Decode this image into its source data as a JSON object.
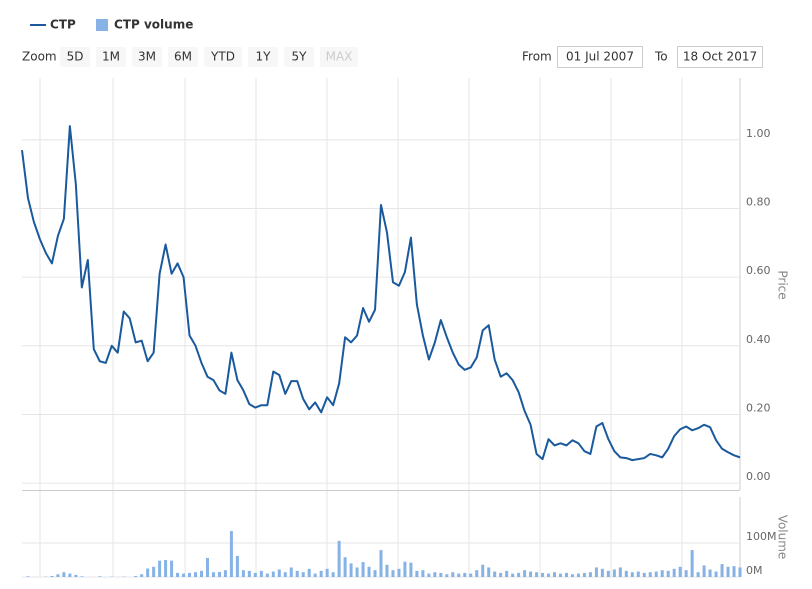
{
  "chart_data": [
    {
      "type": "line",
      "series": [
        {
          "name": "CTP",
          "color": "#1a5a9c",
          "values": [
            0.97,
            0.83,
            0.76,
            0.71,
            0.67,
            0.64,
            0.72,
            0.77,
            1.04,
            0.87,
            0.57,
            0.65,
            0.39,
            0.355,
            0.35,
            0.4,
            0.38,
            0.5,
            0.48,
            0.41,
            0.415,
            0.355,
            0.38,
            0.61,
            0.695,
            0.61,
            0.64,
            0.6,
            0.43,
            0.4,
            0.35,
            0.31,
            0.3,
            0.27,
            0.26,
            0.38,
            0.3,
            0.27,
            0.23,
            0.22,
            0.227,
            0.227,
            0.325,
            0.315,
            0.26,
            0.297,
            0.297,
            0.245,
            0.215,
            0.235,
            0.206,
            0.25,
            0.227,
            0.29,
            0.425,
            0.41,
            0.43,
            0.51,
            0.47,
            0.505,
            0.81,
            0.73,
            0.585,
            0.575,
            0.615,
            0.715,
            0.52,
            0.43,
            0.36,
            0.41,
            0.475,
            0.425,
            0.38,
            0.345,
            0.33,
            0.337,
            0.366,
            0.445,
            0.46,
            0.36,
            0.31,
            0.32,
            0.3,
            0.265,
            0.21,
            0.17,
            0.085,
            0.07,
            0.128,
            0.11,
            0.116,
            0.11,
            0.125,
            0.116,
            0.093,
            0.085,
            0.165,
            0.175,
            0.128,
            0.093,
            0.075,
            0.073,
            0.067,
            0.07,
            0.073,
            0.085,
            0.081,
            0.075,
            0.1,
            0.137,
            0.157,
            0.165,
            0.154,
            0.16,
            0.17,
            0.163,
            0.125,
            0.1,
            0.09,
            0.081,
            0.075
          ]
        }
      ],
      "ylabel": "Price",
      "ylim": [
        -0.02,
        1.18
      ],
      "yticks": [
        {
          "value": 0,
          "label": "0.00"
        },
        {
          "value": 0.2,
          "label": "0.20"
        },
        {
          "value": 0.4,
          "label": "0.40"
        },
        {
          "value": 0.6,
          "label": "0.60"
        },
        {
          "value": 0.8,
          "label": "0.80"
        },
        {
          "value": 1.0,
          "label": "1.00"
        }
      ],
      "grid": true
    },
    {
      "type": "bar",
      "series": [
        {
          "name": "CTP volume",
          "color": "#86b2e6",
          "values": [
            0,
            2,
            0,
            0,
            1,
            3,
            8,
            14,
            10,
            6,
            2,
            0,
            0,
            2,
            0,
            1,
            0,
            1,
            0,
            3,
            8,
            25,
            30,
            48,
            50,
            48,
            12,
            10,
            12,
            14,
            18,
            56,
            14,
            15,
            20,
            135,
            62,
            20,
            18,
            12,
            18,
            10,
            16,
            22,
            14,
            28,
            18,
            14,
            24,
            10,
            18,
            24,
            14,
            106,
            58,
            40,
            28,
            44,
            30,
            20,
            79,
            36,
            20,
            24,
            45,
            42,
            18,
            20,
            10,
            14,
            12,
            8,
            14,
            10,
            12,
            10,
            20,
            36,
            28,
            16,
            12,
            18,
            10,
            12,
            20,
            16,
            14,
            12,
            10,
            14,
            10,
            12,
            8,
            10,
            12,
            14,
            28,
            24,
            18,
            22,
            28,
            18,
            14,
            16,
            12,
            14,
            16,
            20,
            18,
            24,
            30,
            20,
            79,
            14,
            34,
            22,
            16,
            38,
            30,
            32,
            28
          ]
        }
      ],
      "ylabel": "Volume",
      "ylim": [
        0,
        235
      ],
      "yticks": [
        {
          "value": 0,
          "label": "0M"
        },
        {
          "value": 100,
          "label": "100M"
        }
      ],
      "grid": true
    }
  ],
  "range_selector": {
    "label": "Zoom",
    "buttons": [
      "5D",
      "1M",
      "3M",
      "6M",
      "YTD",
      "1Y",
      "5Y",
      "MAX"
    ],
    "from_label": "From",
    "from": "01 Jul 2007",
    "to_label": "To",
    "to": "18 Oct 2017"
  }
}
